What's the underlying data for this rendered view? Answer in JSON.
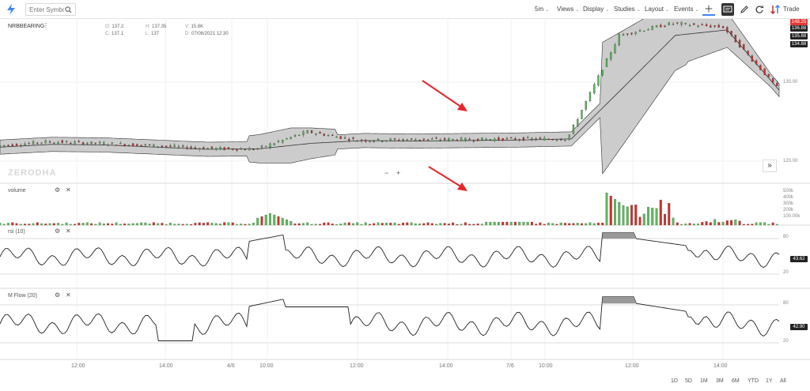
{
  "toolbar": {
    "search_placeholder": "Enter Symbol",
    "interval": "5m",
    "menus": [
      "Views",
      "Display",
      "Studies",
      "Layout",
      "Events"
    ],
    "trade_label": "Trade"
  },
  "symbol": "NRBBEARING",
  "ohlc": {
    "o_label": "O:",
    "o": "137.2",
    "h_label": "H:",
    "h": "137.35",
    "v_label": "V:",
    "v": "15.8K",
    "c_label": "C:",
    "c": "137.1",
    "l_label": "L:",
    "l": "137",
    "d_label": "D:",
    "d": "07/06/2021 12:30"
  },
  "watermark": "ZERODHA",
  "price_badges": [
    "148.25",
    "136.88",
    "135.88",
    "134.88"
  ],
  "badge_colors": [
    "#e53935",
    "#222222",
    "#222222",
    "#222222"
  ],
  "rsi_badge": "43.62",
  "mflow_badge": "42.90",
  "zoom": {
    "minus": "−",
    "plus": "+"
  },
  "expand": "»",
  "panes": {
    "volume": "volume",
    "rsi": "rsi (10)",
    "mflow": "M Flow (20)"
  },
  "time_ticks": [
    "12:00",
    "14:00",
    "4/6",
    "10:00",
    "12:00",
    "14:00",
    "7/6",
    "10:00",
    "12:00",
    "14:00"
  ],
  "range_buttons": [
    "1D",
    "5D",
    "1M",
    "3M",
    "6M",
    "YTD",
    "1Y",
    "All"
  ],
  "colors": {
    "up": "#5cb85c",
    "down": "#c9302c",
    "band": "#cccccc",
    "grid": "#e6e6e6",
    "accent": "#4184f3",
    "arrow": "#e5262b"
  },
  "chart_data": [
    {
      "type": "candlestick",
      "title": "NRBBEARING",
      "series": [
        {
          "name": "price",
          "x_index": [
            0,
            20,
            40,
            60,
            80,
            100,
            120,
            140,
            160,
            180,
            200,
            220,
            240,
            260,
            280,
            300
          ],
          "values": [
            125.8,
            126.6,
            126.3,
            125.9,
            125.4,
            125.2,
            128.4,
            126.8,
            127.0,
            127.0,
            127.1,
            127.1,
            146.0,
            148.2,
            147.5,
            136.9
          ]
        },
        {
          "name": "bollinger middle",
          "values": [
            125.6,
            126.1,
            126.0,
            125.6,
            125.2,
            125.3,
            126.3,
            126.8,
            126.7,
            126.8,
            126.9,
            127.1,
            136.5,
            146.0,
            147.0,
            136.0
          ]
        }
      ],
      "y_ticks": [
        "130.00",
        "120.00"
      ],
      "ylim": [
        119,
        149
      ]
    },
    {
      "type": "bar",
      "series": [
        {
          "name": "volume",
          "peak": "500K"
        }
      ],
      "y_ticks": [
        "500k",
        "400k",
        "300k",
        "200k",
        "100.00k"
      ]
    },
    {
      "type": "line",
      "series": [
        {
          "name": "rsi (10)",
          "last": 43.62
        }
      ],
      "y_ticks": [
        "80",
        "20"
      ],
      "ylim": [
        0,
        100
      ]
    },
    {
      "type": "line",
      "series": [
        {
          "name": "M Flow (20)",
          "last": 42.9
        }
      ],
      "y_ticks": [
        "80",
        "20"
      ],
      "ylim": [
        0,
        100
      ]
    }
  ]
}
